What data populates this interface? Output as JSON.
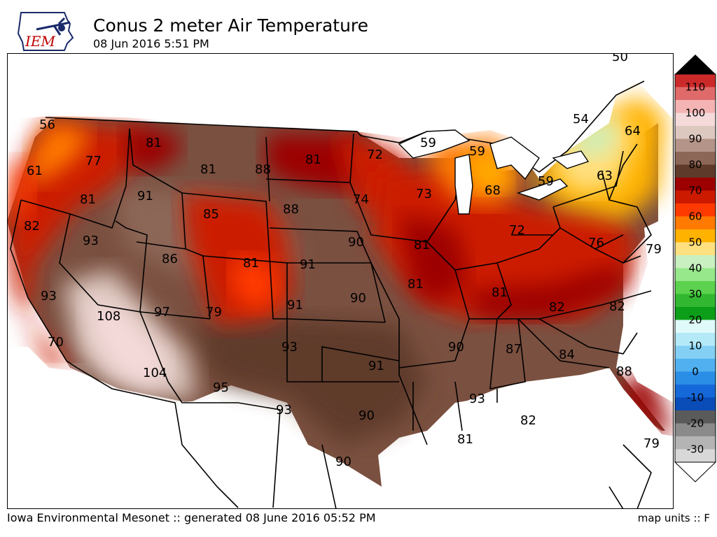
{
  "header": {
    "logo_text": "IEM",
    "title": "Conus 2 meter Air Temperature",
    "subtitle": "08 Jun 2016 5:51 PM"
  },
  "footer": {
    "credit": "Iowa Environmental Mesonet :: generated 08 June 2016 05:52 PM",
    "units": "map units :: F"
  },
  "legend": {
    "labels": [
      "110",
      "100",
      "90",
      "80",
      "70",
      "60",
      "50",
      "40",
      "30",
      "20",
      "10",
      "0",
      "-10",
      "-20",
      "-30"
    ],
    "colors": [
      "#cc2a2a",
      "#e06a6a",
      "#f4b4b4",
      "#f5dada",
      "#ddc8c0",
      "#b49488",
      "#8c6656",
      "#5e3a2a",
      "#9c0000",
      "#cc1a00",
      "#ff3a00",
      "#ff7a00",
      "#ffb200",
      "#ffe080",
      "#c8f0c0",
      "#96e88a",
      "#5cd24e",
      "#32b830",
      "#0c9e18",
      "#e0fafa",
      "#b4eaf8",
      "#84d0f4",
      "#50b0f0",
      "#2a8ee6",
      "#1468d8",
      "#0a4cb8",
      "#5a5a5a",
      "#8a8a8a",
      "#b4b4b4",
      "#d8d8d8"
    ]
  },
  "stations": [
    {
      "value": "56"
    },
    {
      "value": "61"
    },
    {
      "value": "77"
    },
    {
      "value": "81"
    },
    {
      "value": "82"
    },
    {
      "value": "81"
    },
    {
      "value": "91"
    },
    {
      "value": "81"
    },
    {
      "value": "88"
    },
    {
      "value": "81"
    },
    {
      "value": "72"
    },
    {
      "value": "59"
    },
    {
      "value": "59"
    },
    {
      "value": "54"
    },
    {
      "value": "64"
    },
    {
      "value": "63"
    },
    {
      "value": "59"
    },
    {
      "value": "68"
    },
    {
      "value": "73"
    },
    {
      "value": "74"
    },
    {
      "value": "85"
    },
    {
      "value": "88"
    },
    {
      "value": "93"
    },
    {
      "value": "86"
    },
    {
      "value": "81"
    },
    {
      "value": "91"
    },
    {
      "value": "90"
    },
    {
      "value": "81"
    },
    {
      "value": "72"
    },
    {
      "value": "76"
    },
    {
      "value": "79"
    },
    {
      "value": "93"
    },
    {
      "value": "108"
    },
    {
      "value": "97"
    },
    {
      "value": "79"
    },
    {
      "value": "91"
    },
    {
      "value": "90"
    },
    {
      "value": "81"
    },
    {
      "value": "81"
    },
    {
      "value": "82"
    },
    {
      "value": "82"
    },
    {
      "value": "70"
    },
    {
      "value": "104"
    },
    {
      "value": "95"
    },
    {
      "value": "93"
    },
    {
      "value": "91"
    },
    {
      "value": "90"
    },
    {
      "value": "87"
    },
    {
      "value": "84"
    },
    {
      "value": "88"
    },
    {
      "value": "93"
    },
    {
      "value": "93"
    },
    {
      "value": "90"
    },
    {
      "value": "82"
    },
    {
      "value": "81"
    },
    {
      "value": "79"
    },
    {
      "value": "90"
    },
    {
      "value": "50"
    }
  ]
}
